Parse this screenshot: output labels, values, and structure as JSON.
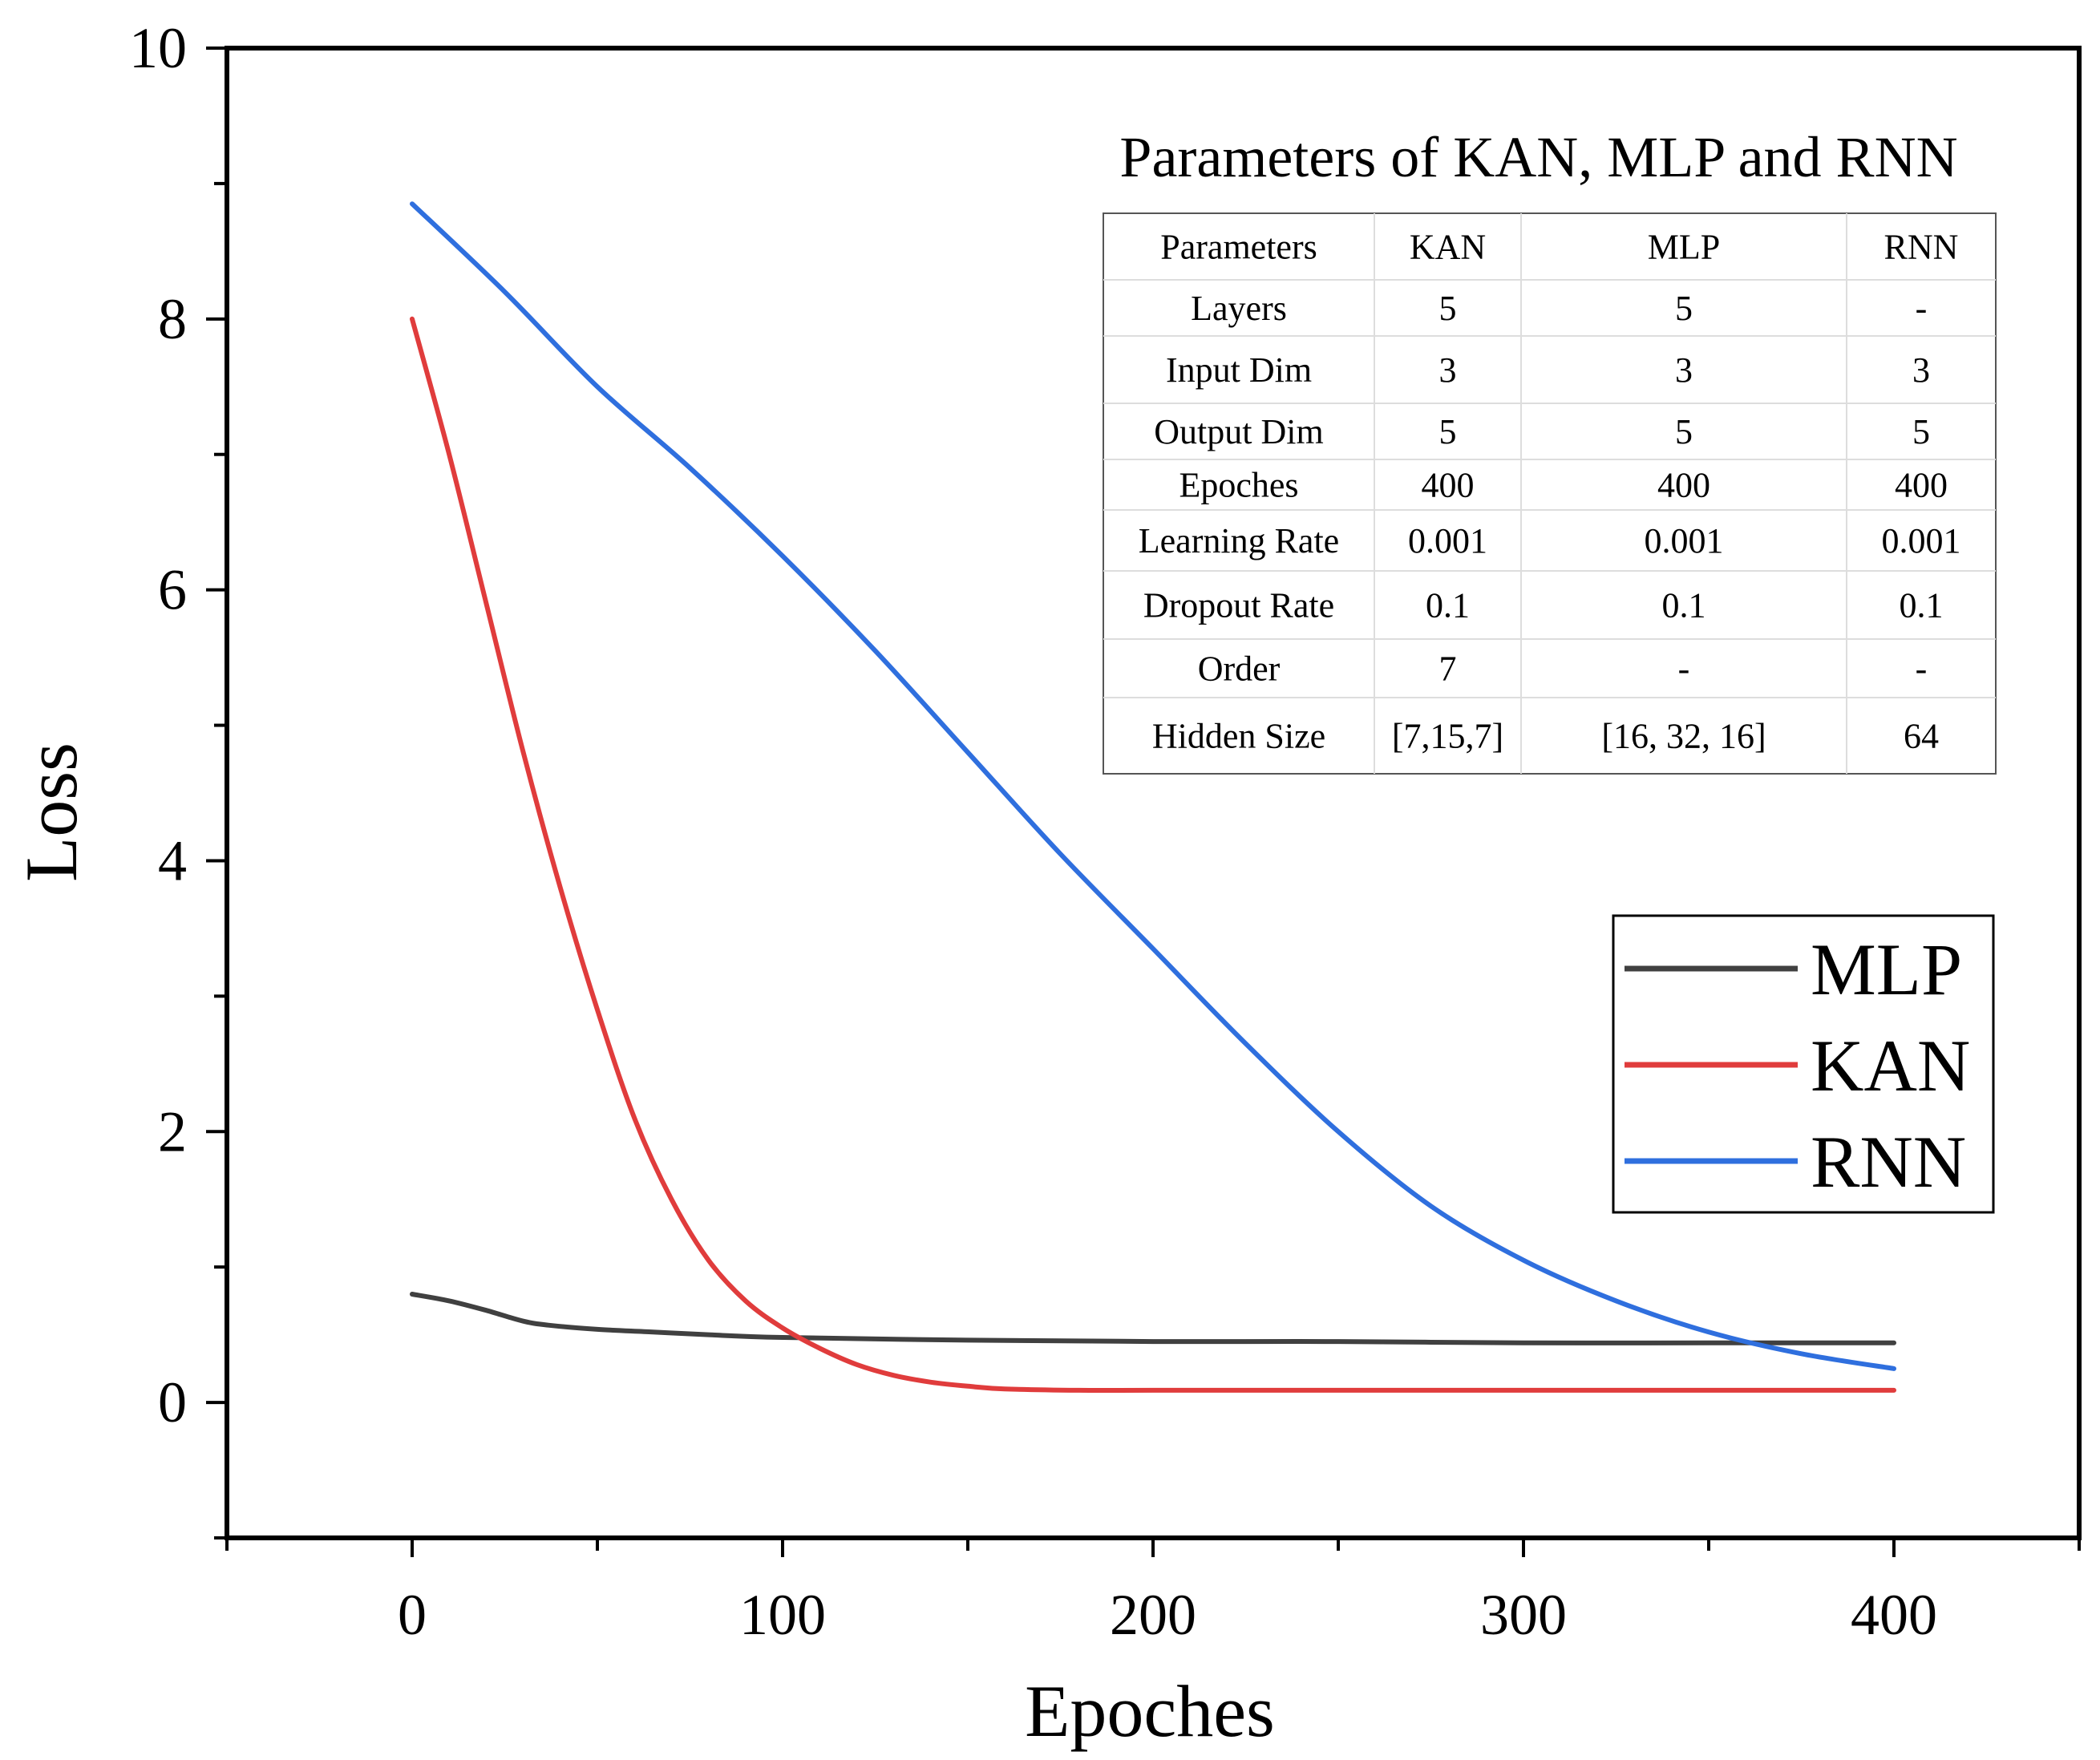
{
  "chart_data": {
    "type": "line",
    "xlabel": "Epoches",
    "ylabel": "Loss",
    "xlim": [
      -50,
      450
    ],
    "ylim": [
      -1,
      10
    ],
    "xticks": [
      0,
      100,
      200,
      300,
      400
    ],
    "yticks": [
      0,
      2,
      4,
      6,
      8,
      10
    ],
    "x_minor_step": 50,
    "y_minor_step": 1,
    "legend_position": "right",
    "series": [
      {
        "name": "MLP",
        "color": "#404040",
        "x": [
          0,
          10,
          20,
          30,
          37,
          50,
          65,
          80,
          100,
          150,
          200,
          250,
          300,
          350,
          400
        ],
        "y": [
          0.8,
          0.75,
          0.68,
          0.6,
          0.57,
          0.54,
          0.52,
          0.5,
          0.48,
          0.46,
          0.45,
          0.45,
          0.44,
          0.44,
          0.44
        ]
      },
      {
        "name": "KAN",
        "color": "#e03c3c",
        "x": [
          0,
          10,
          20,
          30,
          40,
          50,
          60,
          70,
          80,
          90,
          100,
          110,
          120,
          130,
          140,
          150,
          160,
          180,
          200,
          250,
          300,
          350,
          400
        ],
        "y": [
          8.0,
          7.0,
          5.9,
          4.8,
          3.8,
          2.9,
          2.1,
          1.5,
          1.05,
          0.75,
          0.55,
          0.4,
          0.28,
          0.2,
          0.15,
          0.12,
          0.1,
          0.09,
          0.09,
          0.09,
          0.09,
          0.09,
          0.09
        ]
      },
      {
        "name": "RNN",
        "color": "#2f6fde",
        "x": [
          0,
          25,
          50,
          75,
          100,
          125,
          150,
          175,
          200,
          225,
          250,
          275,
          300,
          325,
          350,
          375,
          400
        ],
        "y": [
          8.85,
          8.2,
          7.5,
          6.9,
          6.25,
          5.55,
          4.8,
          4.05,
          3.35,
          2.65,
          2.0,
          1.45,
          1.05,
          0.75,
          0.52,
          0.36,
          0.25
        ]
      }
    ]
  },
  "table": {
    "title": "Parameters of KAN, MLP and RNN",
    "headers": [
      "Parameters",
      "KAN",
      "MLP",
      "RNN"
    ],
    "rows": [
      [
        "Layers",
        "5",
        "5",
        "-"
      ],
      [
        "Input Dim",
        "3",
        "3",
        "3"
      ],
      [
        "Output Dim",
        "5",
        "5",
        "5"
      ],
      [
        "Epoches",
        "400",
        "400",
        "400"
      ],
      [
        "Learning Rate",
        "0.001",
        "0.001",
        "0.001"
      ],
      [
        "Dropout Rate",
        "0.1",
        "0.1",
        "0.1"
      ],
      [
        "Order",
        "7",
        "-",
        "-"
      ],
      [
        "Hidden Size",
        "[7,15,7]",
        "[16, 32, 16]",
        "64"
      ]
    ]
  }
}
